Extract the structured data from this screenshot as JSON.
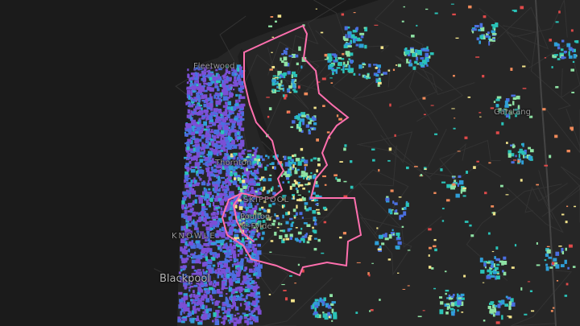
{
  "map": {
    "places": [
      {
        "name": "Fleetwood"
      },
      {
        "name": "Thornton"
      },
      {
        "name": "SKIPPOOL"
      },
      {
        "name": "Poulton-"
      },
      {
        "name": "le-Fylde"
      },
      {
        "name": "KNOWLE"
      },
      {
        "name": "Blackpool"
      },
      {
        "name": "Garstang"
      }
    ],
    "colors": {
      "sea": "#1b1b1b",
      "land": "#262626",
      "boundary": "#ff6fae",
      "scale": [
        "#7b4fd6",
        "#4a6fe0",
        "#2f9fd8",
        "#2ac3b8",
        "#8fe3a4",
        "#f4e58c",
        "#f08a5a",
        "#e04a4a"
      ]
    }
  }
}
